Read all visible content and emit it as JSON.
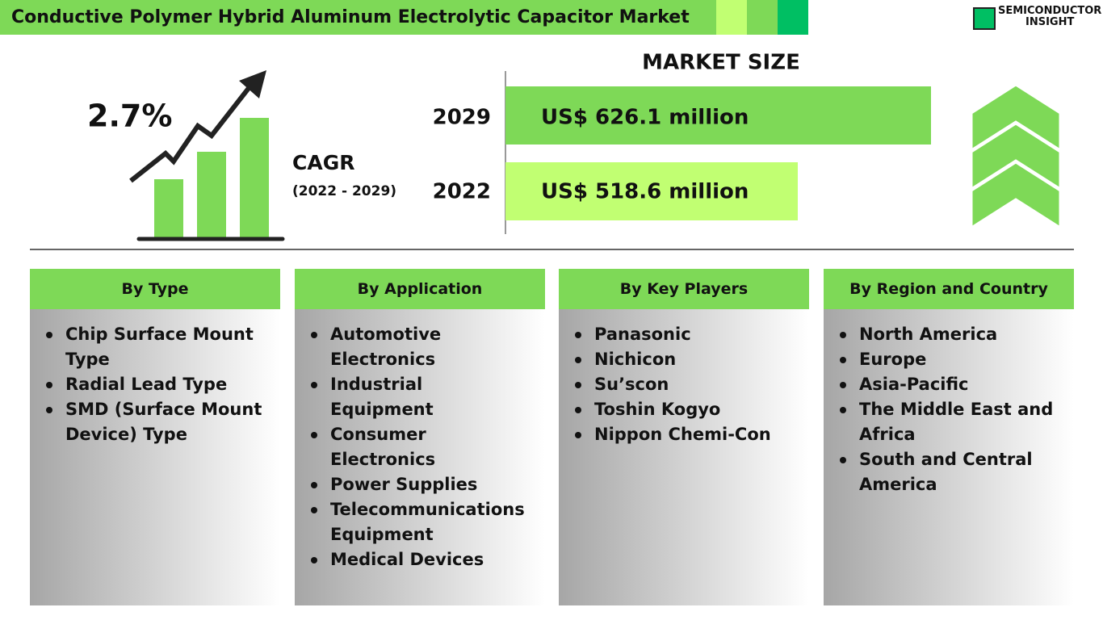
{
  "header": {
    "title": "Conductive Polymer Hybrid Aluminum Electrolytic Capacitor Market",
    "logo": [
      "SEMICONDUCTOR",
      "INSIGHT"
    ]
  },
  "cagr": {
    "value": "2.7%",
    "label": "CAGR",
    "period": "(2022 - 2029)"
  },
  "market_size": {
    "title": "MARKET SIZE",
    "rows": [
      {
        "year": "2029",
        "value": "US$ 626.1 million"
      },
      {
        "year": "2022",
        "value": "US$ 518.6 million"
      }
    ]
  },
  "segments": [
    {
      "title": "By Type",
      "items": [
        "Chip Surface Mount Type",
        "Radial Lead Type",
        "SMD (Surface Mount Device) Type"
      ]
    },
    {
      "title": "By Application",
      "items": [
        "Automotive Electronics",
        "Industrial Equipment",
        "Consumer Electronics",
        "Power Supplies",
        "Telecommunications Equipment",
        "Medical Devices"
      ]
    },
    {
      "title": "By Key Players",
      "items": [
        "Panasonic",
        "Nichicon",
        "Su’scon",
        "Toshin Kogyo",
        "Nippon Chemi-Con"
      ]
    },
    {
      "title": "By Region and Country",
      "items": [
        "North America",
        "Europe",
        "Asia-Pacific",
        "The Middle East and Africa",
        "South and Central America"
      ]
    }
  ]
}
